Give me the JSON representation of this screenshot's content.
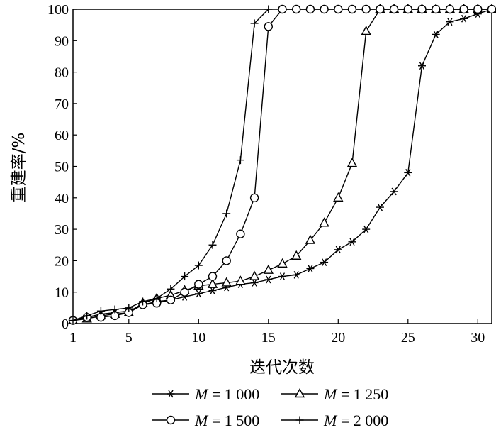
{
  "chart_data": {
    "type": "line",
    "title": "",
    "xlabel": "迭代次数",
    "ylabel": "重建率/%",
    "xlim": [
      1,
      31
    ],
    "ylim": [
      0,
      100
    ],
    "x_ticks": [
      1,
      5,
      10,
      15,
      20,
      25,
      30
    ],
    "x_tick_labels": [
      "1",
      "5",
      "10",
      "15",
      "20",
      "25",
      "30"
    ],
    "y_ticks": [
      0,
      10,
      20,
      30,
      40,
      50,
      60,
      70,
      80,
      90,
      100
    ],
    "y_tick_labels": [
      "0",
      "10",
      "20",
      "30",
      "40",
      "50",
      "60",
      "70",
      "80",
      "90",
      "100"
    ],
    "grid": false,
    "legend_position": "bottom",
    "series": [
      {
        "name": "M = 1 000",
        "legend_var": "M",
        "legend_rest": " = 1 000",
        "marker": "asterisk",
        "x": [
          1,
          2,
          3,
          4,
          5,
          6,
          7,
          8,
          9,
          10,
          11,
          12,
          13,
          14,
          15,
          16,
          17,
          18,
          19,
          20,
          21,
          22,
          23,
          24,
          25,
          26,
          27,
          28,
          29,
          30,
          31
        ],
        "y": [
          1,
          2,
          3,
          3.5,
          4,
          6,
          7,
          7.5,
          8.5,
          9.5,
          10.5,
          11.5,
          12.5,
          13,
          14,
          15,
          15.5,
          17.5,
          19.5,
          23.5,
          26,
          30,
          37,
          42,
          48,
          82,
          92,
          96,
          97,
          98.5,
          100
        ]
      },
      {
        "name": "M = 1 250",
        "legend_var": "M",
        "legend_rest": " = 1 250",
        "marker": "triangle",
        "x": [
          1,
          2,
          3,
          4,
          5,
          6,
          7,
          8,
          9,
          10,
          11,
          12,
          13,
          14,
          15,
          16,
          17,
          18,
          19,
          20,
          21,
          22,
          23,
          24,
          25,
          26,
          27,
          28,
          29,
          30,
          31
        ],
        "y": [
          1,
          1.5,
          2.5,
          3,
          3.5,
          6.5,
          8,
          9,
          10.5,
          12,
          12.5,
          13,
          13.5,
          15,
          17,
          19,
          21.5,
          26.5,
          32,
          40,
          51,
          93,
          100,
          100,
          100,
          100,
          100,
          100,
          100,
          100,
          100
        ]
      },
      {
        "name": "M = 1 500",
        "legend_var": "M",
        "legend_rest": " = 1 500",
        "marker": "circle",
        "x": [
          1,
          2,
          3,
          4,
          5,
          6,
          7,
          8,
          9,
          10,
          11,
          12,
          13,
          14,
          15,
          16,
          17,
          18,
          19,
          20,
          21,
          22,
          23,
          24,
          25,
          26,
          27,
          28,
          29,
          30,
          31
        ],
        "y": [
          1,
          2,
          2,
          2.5,
          3.5,
          6,
          6.5,
          7.5,
          10,
          12.5,
          15,
          20,
          28.5,
          40,
          94.5,
          100,
          100,
          100,
          100,
          100,
          100,
          100,
          100,
          100,
          100,
          100,
          100,
          100,
          100,
          100,
          100
        ]
      },
      {
        "name": "M = 2 000",
        "legend_var": "M",
        "legend_rest": " = 2 000",
        "marker": "plus",
        "x": [
          1,
          2,
          3,
          4,
          5,
          6,
          7,
          8,
          9,
          10,
          11,
          12,
          13,
          14,
          15
        ],
        "y": [
          1,
          2.5,
          4,
          4.5,
          5,
          7,
          8,
          11,
          15,
          18.5,
          25,
          35,
          52,
          95.5,
          100
        ]
      }
    ]
  }
}
